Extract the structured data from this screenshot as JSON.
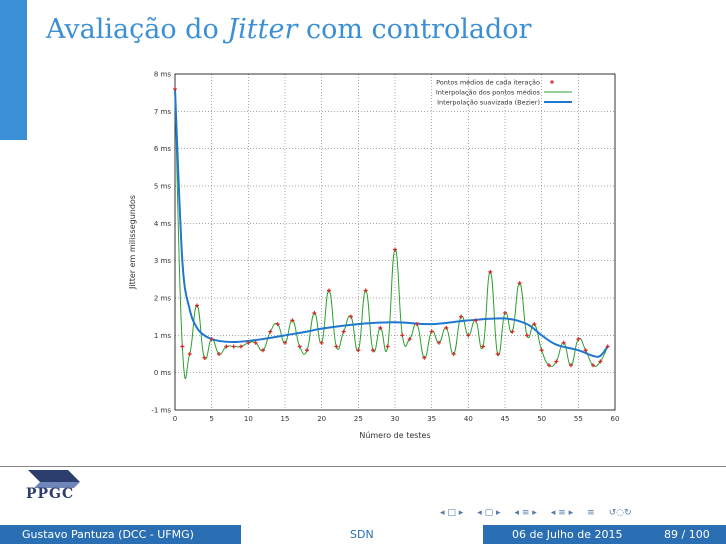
{
  "slide": {
    "title_main": "Avaliação do ",
    "title_italic": "Jitter",
    "title_end": " com controlador"
  },
  "footer": {
    "author": "Gustavo Pantuza (DCC - UFMG)",
    "section": "SDN",
    "date": "06 de Julho de 2015",
    "page": "89 / 100"
  },
  "logo": {
    "text": "PPGC"
  },
  "colors": {
    "accent": "#3b8fd6",
    "footer": "#2a6fb3",
    "series_points": "#d62728",
    "series_interp": "#2ca02c",
    "series_smooth": "#1f77d0"
  },
  "chart_data": {
    "type": "line",
    "xlabel": "Número de testes",
    "ylabel": "Jitter em milissegundos",
    "xlim": [
      0,
      60
    ],
    "ylim": [
      -1,
      8
    ],
    "x_ticks": [
      "0",
      "5",
      "10",
      "15",
      "20",
      "25",
      "30",
      "35",
      "40",
      "45",
      "50",
      "55",
      "60"
    ],
    "y_ticks": [
      "-1 ms",
      "0 ms",
      "1 ms",
      "2 ms",
      "3 ms",
      "4 ms",
      "5 ms",
      "6 ms",
      "7 ms",
      "8 ms"
    ],
    "grid": true,
    "legend_position": "top-right",
    "series": [
      {
        "name": "Pontos médios de cada iteração",
        "style": "points",
        "x": [
          0,
          1,
          2,
          3,
          4,
          5,
          6,
          7,
          8,
          9,
          10,
          11,
          12,
          13,
          14,
          15,
          16,
          17,
          18,
          19,
          20,
          21,
          22,
          23,
          24,
          25,
          26,
          27,
          28,
          29,
          30,
          31,
          32,
          33,
          34,
          35,
          36,
          37,
          38,
          39,
          40,
          41,
          42,
          43,
          44,
          45,
          46,
          47,
          48,
          49,
          50,
          51,
          52,
          53,
          54,
          55,
          56,
          57,
          58,
          59
        ],
        "y": [
          7.6,
          0.7,
          0.5,
          1.8,
          0.4,
          0.9,
          0.5,
          0.7,
          0.7,
          0.7,
          0.8,
          0.8,
          0.6,
          1.1,
          1.3,
          0.8,
          1.4,
          0.7,
          0.6,
          1.6,
          0.8,
          2.2,
          0.7,
          1.1,
          1.5,
          0.6,
          2.2,
          0.6,
          1.2,
          0.7,
          3.3,
          1.0,
          0.9,
          1.3,
          0.4,
          1.1,
          0.8,
          1.2,
          0.5,
          1.5,
          1.0,
          1.4,
          0.7,
          2.7,
          0.5,
          1.6,
          1.1,
          2.4,
          1.0,
          1.3,
          0.6,
          0.2,
          0.3,
          0.8,
          0.2,
          0.9,
          0.6,
          0.2,
          0.3,
          0.7
        ]
      },
      {
        "name": "Interpolação dos pontos médios",
        "style": "line"
      },
      {
        "name": "Interpolação suavizada (Bezier)",
        "style": "smooth",
        "x": [
          0,
          1,
          2,
          3,
          4,
          5,
          6,
          8,
          10,
          12,
          15,
          18,
          20,
          25,
          30,
          35,
          40,
          45,
          48,
          50,
          52,
          55,
          57,
          58,
          59
        ],
        "y": [
          7.6,
          3.0,
          1.7,
          1.2,
          1.0,
          0.9,
          0.85,
          0.82,
          0.85,
          0.9,
          1.0,
          1.1,
          1.18,
          1.3,
          1.35,
          1.3,
          1.4,
          1.45,
          1.3,
          1.0,
          0.75,
          0.6,
          0.45,
          0.45,
          0.7
        ]
      }
    ]
  }
}
